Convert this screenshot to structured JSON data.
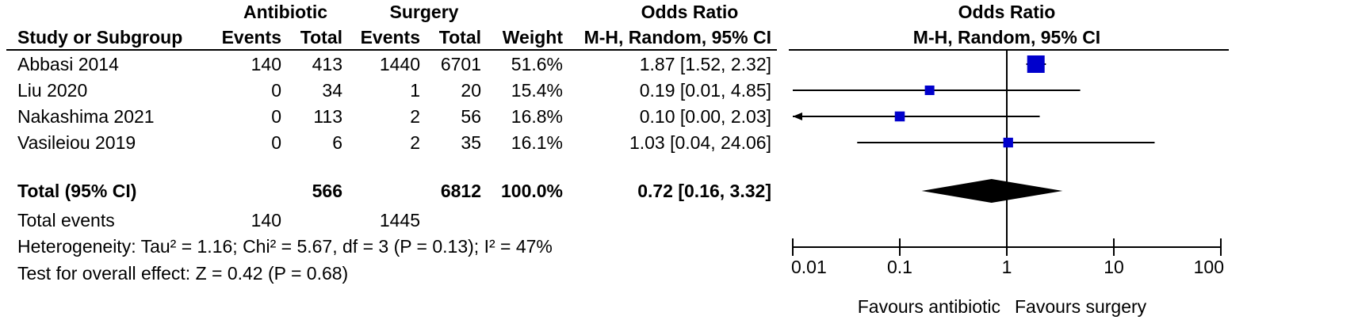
{
  "header": {
    "group1": "Antibiotic",
    "group2": "Surgery",
    "or_title_left": "Odds Ratio",
    "or_title_right": "Odds Ratio",
    "col_study": "Study or Subgroup",
    "col_events1": "Events",
    "col_total1": "Total",
    "col_events2": "Events",
    "col_total2": "Total",
    "col_weight": "Weight",
    "col_method_left": "M-H, Random, 95% CI",
    "col_method_right": "M-H, Random, 95% CI"
  },
  "studies": [
    {
      "name": "Abbasi 2014",
      "events1": "140",
      "total1": "413",
      "events2": "1440",
      "total2": "6701",
      "weight": "51.6%",
      "ci_text": "1.87 [1.52, 2.32]"
    },
    {
      "name": "Liu 2020",
      "events1": "0",
      "total1": "34",
      "events2": "1",
      "total2": "20",
      "weight": "15.4%",
      "ci_text": "0.19 [0.01, 4.85]"
    },
    {
      "name": "Nakashima 2021",
      "events1": "0",
      "total1": "113",
      "events2": "2",
      "total2": "56",
      "weight": "16.8%",
      "ci_text": "0.10 [0.00, 2.03]"
    },
    {
      "name": "Vasileiou 2019",
      "events1": "0",
      "total1": "6",
      "events2": "2",
      "total2": "35",
      "weight": "16.1%",
      "ci_text": "1.03 [0.04, 24.06]"
    }
  ],
  "total": {
    "label": "Total (95% CI)",
    "total1": "566",
    "total2": "6812",
    "weight": "100.0%",
    "ci_text": "0.72 [0.16, 3.32]"
  },
  "total_events": {
    "label": "Total events",
    "events1": "140",
    "events2": "1445"
  },
  "heterogeneity": "Heterogeneity: Tau² = 1.16; Chi² = 5.67, df = 3 (P = 0.13); I² = 47%",
  "overall_effect": "Test for overall effect: Z = 0.42 (P = 0.68)",
  "chart_data": {
    "type": "forest",
    "scale": "log",
    "xlim": [
      0.01,
      100
    ],
    "ticks": [
      "0.01",
      "0.1",
      "1",
      "10",
      "100"
    ],
    "tick_values": [
      0.01,
      0.1,
      1,
      10,
      100
    ],
    "null_value": 1,
    "favours_left": "Favours antibiotic",
    "favours_right": "Favours surgery",
    "points": [
      {
        "study": "Abbasi 2014",
        "or": 1.87,
        "lo": 1.52,
        "hi": 2.32,
        "weight": 51.6
      },
      {
        "study": "Liu 2020",
        "or": 0.19,
        "lo": 0.01,
        "hi": 4.85,
        "weight": 15.4
      },
      {
        "study": "Nakashima 2021",
        "or": 0.1,
        "lo": 0.0,
        "hi": 2.03,
        "weight": 16.8
      },
      {
        "study": "Vasileiou 2019",
        "or": 1.03,
        "lo": 0.04,
        "hi": 24.06,
        "weight": 16.1
      }
    ],
    "pooled": {
      "or": 0.72,
      "lo": 0.16,
      "hi": 3.32
    },
    "colors": {
      "marker": "#0000cc",
      "line": "#000000",
      "diamond": "#000000"
    }
  }
}
